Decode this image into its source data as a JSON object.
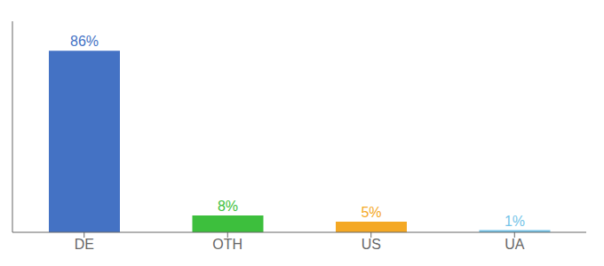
{
  "chart_data": {
    "type": "bar",
    "categories": [
      "DE",
      "OTH",
      "US",
      "UA"
    ],
    "values": [
      86,
      8,
      5,
      1
    ],
    "value_labels": [
      "86%",
      "8%",
      "5%",
      "1%"
    ],
    "colors": [
      "#4472c4",
      "#3dbf3d",
      "#f4a824",
      "#74c4e8"
    ],
    "ylim": [
      0,
      100
    ],
    "data_labels": true,
    "tick_labels": "x",
    "grid": false
  }
}
